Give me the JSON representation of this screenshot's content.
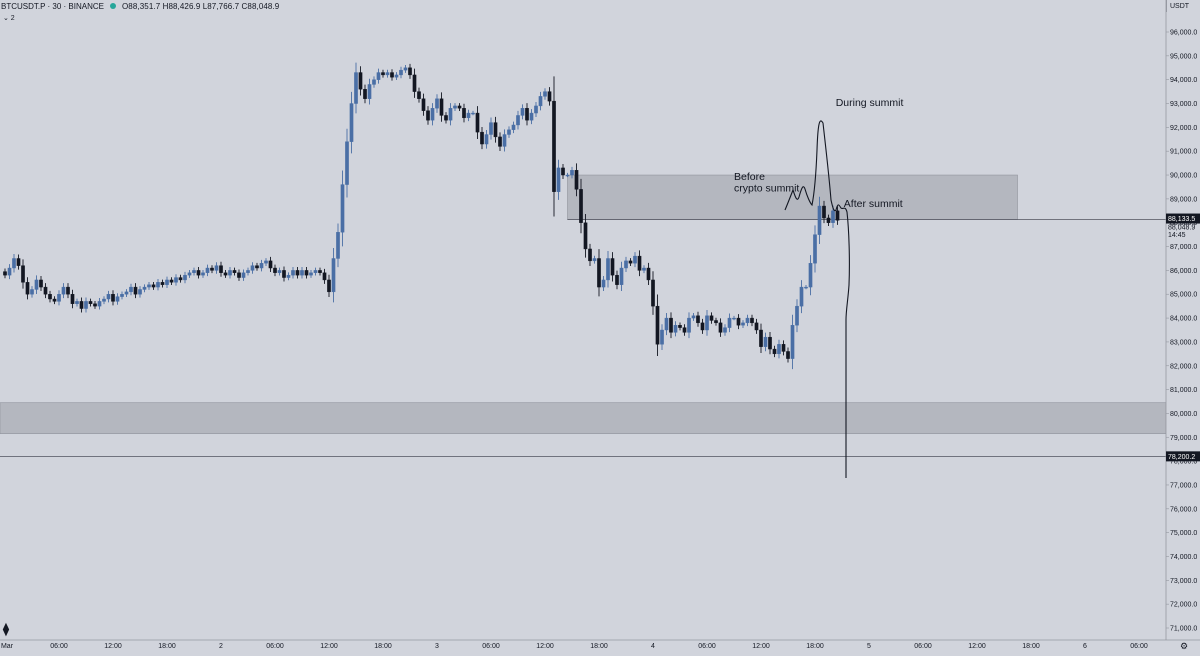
{
  "header": {
    "symbol": "BTCUSDT.P · 30 · BINANCE",
    "ohlc": "O88,351.7 H88,426.9 L87,766.7 C88,048.9",
    "indicator_toggle": "⌄ 2"
  },
  "price_unit": "USDT",
  "price_axis": {
    "ticks": [
      "96,000.0",
      "95,000.0",
      "94,000.0",
      "93,000.0",
      "92,000.0",
      "91,000.0",
      "90,000.0",
      "89,000.0",
      "88,000.0",
      "87,000.0",
      "86,000.0",
      "85,000.0",
      "84,000.0",
      "83,000.0",
      "82,000.0",
      "81,000.0",
      "80,000.0",
      "79,000.0",
      "78,000.0",
      "77,000.0",
      "76,000.0",
      "75,000.0",
      "74,000.0",
      "73,000.0",
      "72,000.0",
      "71,000.0"
    ],
    "tick_values": [
      96000,
      95000,
      94000,
      93000,
      92000,
      91000,
      90000,
      89000,
      88000,
      87000,
      86000,
      85000,
      84000,
      83000,
      82000,
      81000,
      80000,
      79000,
      78000,
      77000,
      76000,
      75000,
      74000,
      73000,
      72000,
      71000
    ],
    "last_price_label": "88,133.5",
    "close_label": "88,048.9",
    "countdown": "14:45",
    "level_label": "78,200.2",
    "last_price_value": 88133.5,
    "level_value": 78200.2
  },
  "time_axis": {
    "labels": [
      "Mar",
      "06:00",
      "12:00",
      "18:00",
      "2",
      "06:00",
      "12:00",
      "18:00",
      "3",
      "06:00",
      "12:00",
      "18:00",
      "4",
      "06:00",
      "12:00",
      "18:00",
      "5",
      "06:00",
      "12:00",
      "18:00",
      "6",
      "06:00"
    ],
    "hours": [
      0,
      6,
      12,
      18,
      24,
      30,
      36,
      42,
      48,
      54,
      60,
      66,
      72,
      78,
      84,
      90,
      96,
      102,
      108,
      114,
      120,
      126
    ]
  },
  "zones": [
    {
      "top": 90000,
      "bottom": 88130,
      "from_hour": 62.5,
      "to_hour": 112.5
    },
    {
      "top": 80450,
      "bottom": 79150,
      "from_hour": -1,
      "to_hour": 140
    }
  ],
  "annotations": [
    {
      "text": "During summit",
      "hour": 92.3,
      "price": 92900
    },
    {
      "text": "Before",
      "hour": 81,
      "price": 89800
    },
    {
      "text": "crypto summit",
      "hour": 81,
      "price": 89300
    },
    {
      "text": "After summit",
      "hour": 93.2,
      "price": 88650
    }
  ],
  "colors": {
    "background": "#d1d4dc",
    "bull": "#4a6fa5",
    "bear": "#131722",
    "zone": "#b4b7bf",
    "text": "#131722",
    "accent": "#26a69a"
  },
  "icons": {
    "logo": "tradingview-logo-icon",
    "settings": "gear-icon",
    "status": "market-open-dot-icon"
  },
  "chart_data": {
    "type": "candlestick",
    "symbol": "BTCUSDT.P",
    "interval": "30",
    "exchange": "BINANCE",
    "start_hour": 0,
    "step_hours": 0.5,
    "y_range": [
      70600,
      97000
    ],
    "closes": [
      85800,
      86100,
      86500,
      86200,
      85500,
      85000,
      85200,
      85600,
      85300,
      85000,
      84800,
      84700,
      85000,
      85300,
      85000,
      84600,
      84700,
      84400,
      84700,
      84600,
      84500,
      84700,
      84800,
      85000,
      84700,
      84900,
      85000,
      85100,
      85300,
      85000,
      85200,
      85300,
      85400,
      85300,
      85500,
      85400,
      85600,
      85500,
      85700,
      85600,
      85800,
      85900,
      86000,
      85800,
      85900,
      86100,
      86000,
      86200,
      85900,
      85800,
      86000,
      85900,
      85700,
      85900,
      86000,
      86200,
      86100,
      86300,
      86400,
      86100,
      85900,
      86000,
      85700,
      85800,
      86000,
      85800,
      86000,
      85800,
      85900,
      86000,
      85900,
      85600,
      85100,
      86500,
      87600,
      89600,
      91400,
      93000,
      94300,
      93600,
      93200,
      93800,
      94000,
      94300,
      94200,
      94300,
      94100,
      94200,
      94400,
      94500,
      94200,
      93500,
      93200,
      92700,
      92300,
      92800,
      93200,
      92500,
      92300,
      92800,
      92900,
      92800,
      92400,
      92600,
      92600,
      91800,
      91300,
      91700,
      92200,
      91600,
      91200,
      91700,
      91900,
      92100,
      92500,
      92800,
      92300,
      92600,
      92900,
      93300,
      93500,
      93100,
      89300,
      90300,
      90000,
      90000,
      90200,
      89400,
      88000,
      86900,
      86400,
      86500,
      85300,
      85600,
      86500,
      85800,
      85400,
      86100,
      86400,
      86300,
      86600,
      86000,
      86100,
      85600,
      84500,
      82900,
      83500,
      84000,
      83400,
      83700,
      83600,
      83400,
      84000,
      84100,
      83800,
      83500,
      84100,
      83900,
      83800,
      83400,
      83600,
      84000,
      84000,
      83700,
      83800,
      84000,
      83800,
      83500,
      82800,
      83200,
      82700,
      82500,
      82900,
      82600,
      82300,
      83700,
      84500,
      85300,
      85300,
      86300,
      87500,
      88700,
      88200,
      88000,
      88500,
      88100
    ]
  }
}
